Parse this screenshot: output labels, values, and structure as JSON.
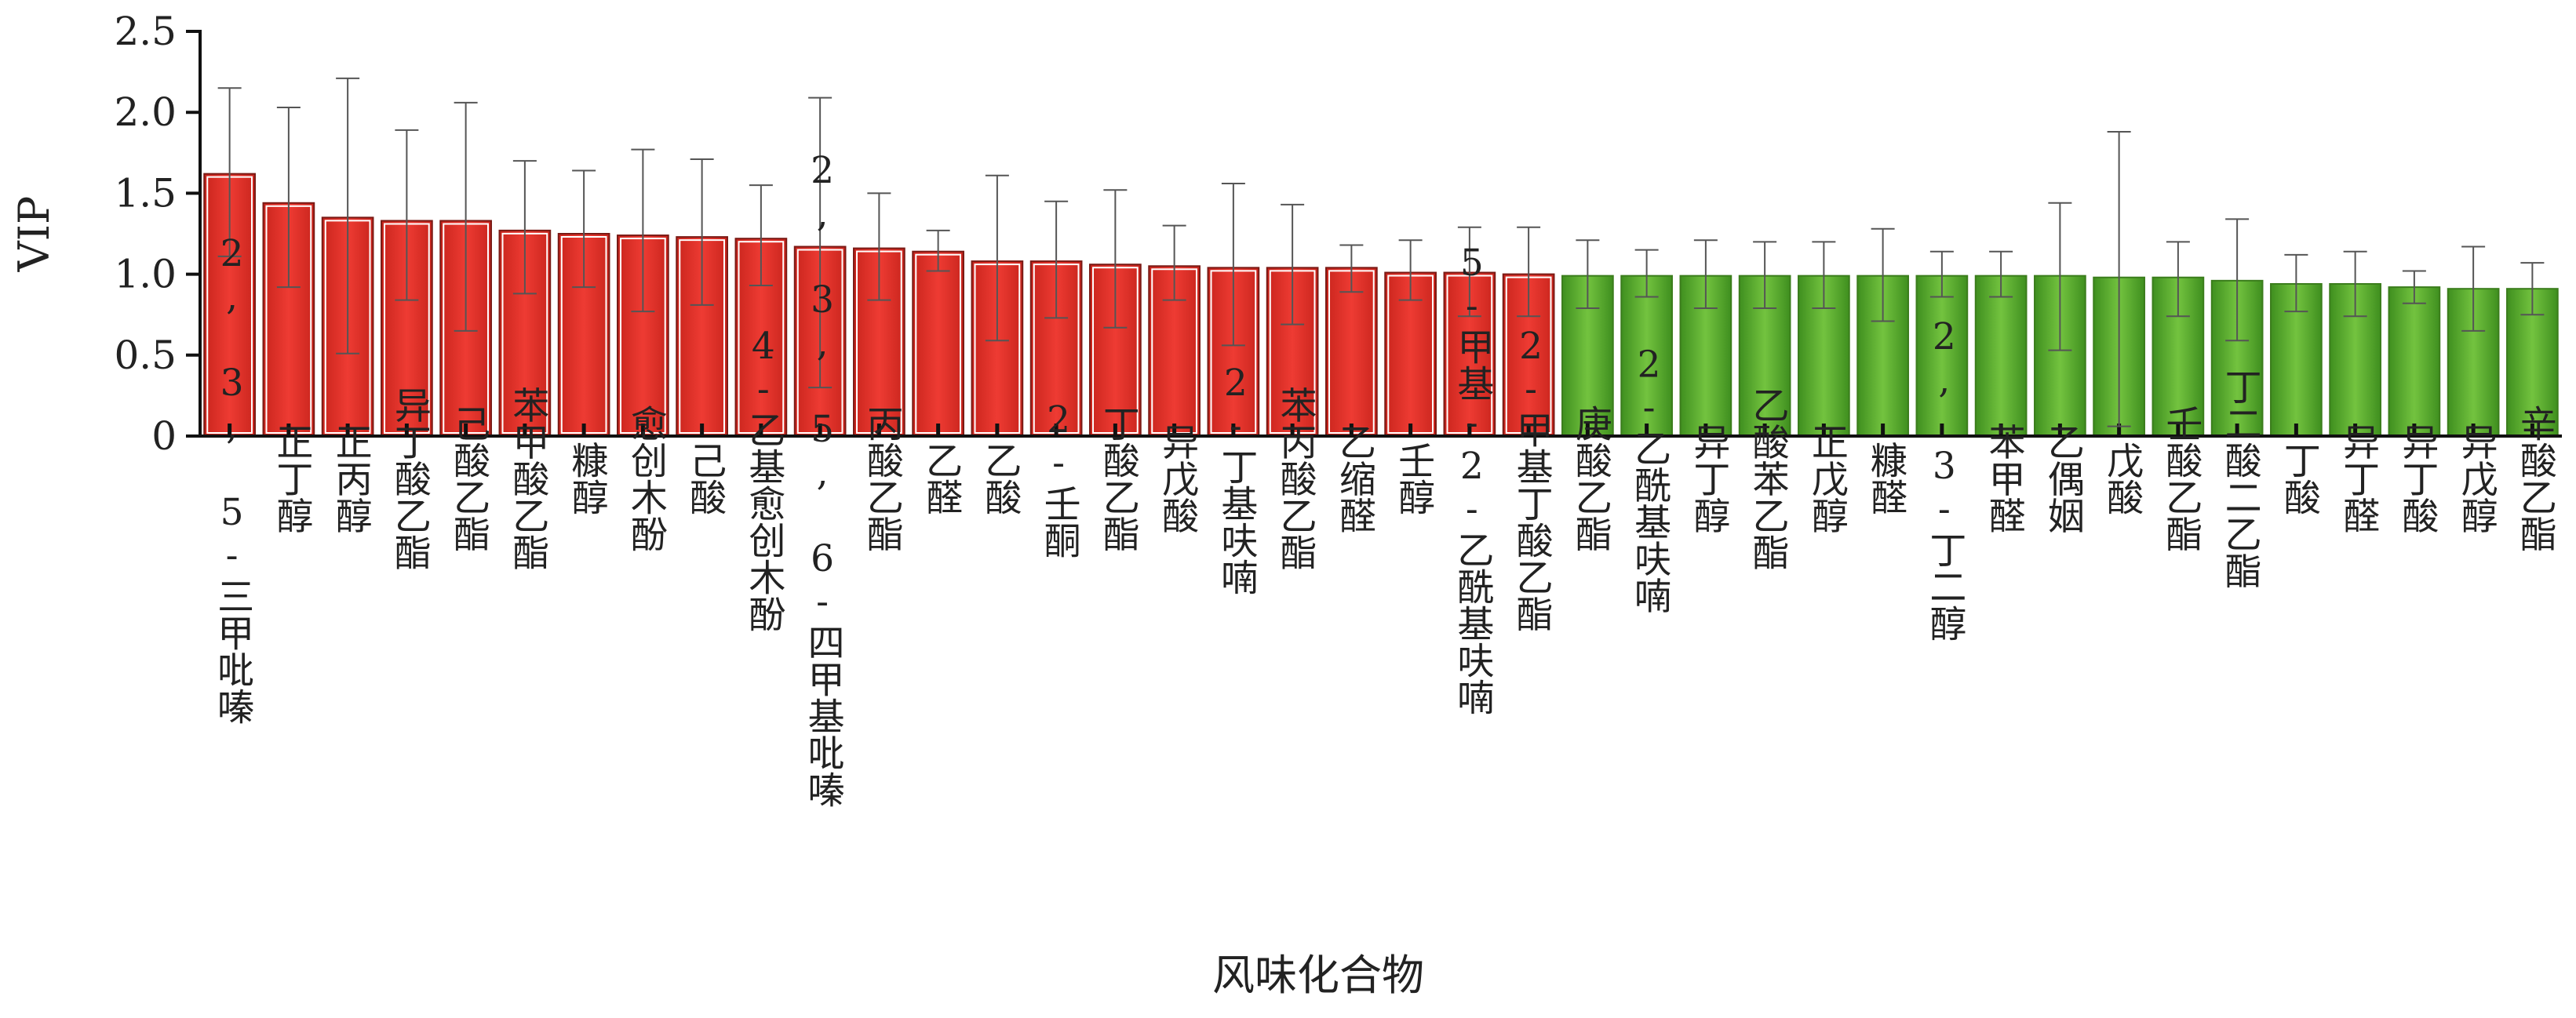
{
  "chart_data": {
    "type": "bar",
    "xlabel": "风味化合物",
    "ylabel": "VIP",
    "ylim": [
      0,
      2.5
    ],
    "yticks": [
      "0",
      "0.5",
      "1.0",
      "1.5",
      "2.0",
      "2.5"
    ],
    "colors": {
      "vip_gt_1": "#e8342c",
      "vip_lt_1": "#52a62a"
    },
    "categories": [
      "2, 3, 5-三甲吡嗪",
      "正丁醇",
      "正丙醇",
      "异丁酸乙酯",
      "己酸乙酯",
      "苯甲酸乙酯",
      "糠醇",
      "愈创木酚",
      "己酸",
      "4-乙基愈创木酚",
      "2, 3, 5, 6-四甲基吡嗪",
      "丙酸乙酯",
      "乙醛",
      "乙酸",
      "2-壬酮",
      "丁酸乙酯",
      "异戊酸",
      "2-丁基呋喃",
      "苯丙酸乙酯",
      "乙缩醛",
      "壬醇",
      "5-甲基-2-乙酰基呋喃",
      "2-甲基丁酸乙酯",
      "庚酸乙酯",
      "2-乙酰基呋喃",
      "异丁醇",
      "乙酸苯乙酯",
      "正戊醇",
      "糠醛",
      "2, 3-丁二醇",
      "苯甲醛",
      "乙偶姻",
      "戊酸",
      "壬酸乙酯",
      "丁二酸二乙酯",
      "丁酸",
      "异丁醛",
      "异丁酸",
      "异戊醇",
      "辛酸乙酯"
    ],
    "values": [
      1.62,
      1.44,
      1.35,
      1.33,
      1.33,
      1.27,
      1.25,
      1.24,
      1.23,
      1.22,
      1.17,
      1.16,
      1.14,
      1.08,
      1.08,
      1.06,
      1.05,
      1.04,
      1.04,
      1.04,
      1.01,
      1.01,
      1.0,
      0.99,
      0.99,
      0.99,
      0.99,
      0.99,
      0.99,
      0.99,
      0.99,
      0.99,
      0.98,
      0.98,
      0.96,
      0.94,
      0.94,
      0.92,
      0.91,
      0.91
    ],
    "error_upper": [
      2.15,
      2.03,
      2.21,
      1.89,
      2.06,
      1.7,
      1.64,
      1.77,
      1.71,
      1.55,
      2.09,
      1.5,
      1.27,
      1.61,
      1.45,
      1.52,
      1.3,
      1.56,
      1.43,
      1.18,
      1.21,
      1.29,
      1.29,
      1.21,
      1.15,
      1.21,
      1.2,
      1.2,
      1.28,
      1.14,
      1.14,
      1.44,
      1.88,
      1.2,
      1.34,
      1.12,
      1.14,
      1.02,
      1.17,
      1.07
    ],
    "error_lower": [
      1.11,
      0.92,
      0.51,
      0.84,
      0.65,
      0.88,
      0.92,
      0.77,
      0.81,
      0.93,
      0.3,
      0.84,
      1.02,
      0.59,
      0.73,
      0.67,
      0.84,
      0.56,
      0.69,
      0.89,
      0.84,
      0.74,
      0.74,
      0.79,
      0.86,
      0.79,
      0.79,
      0.79,
      0.71,
      0.86,
      0.86,
      0.53,
      0.06,
      0.74,
      0.59,
      0.77,
      0.74,
      0.82,
      0.65,
      0.75
    ]
  }
}
